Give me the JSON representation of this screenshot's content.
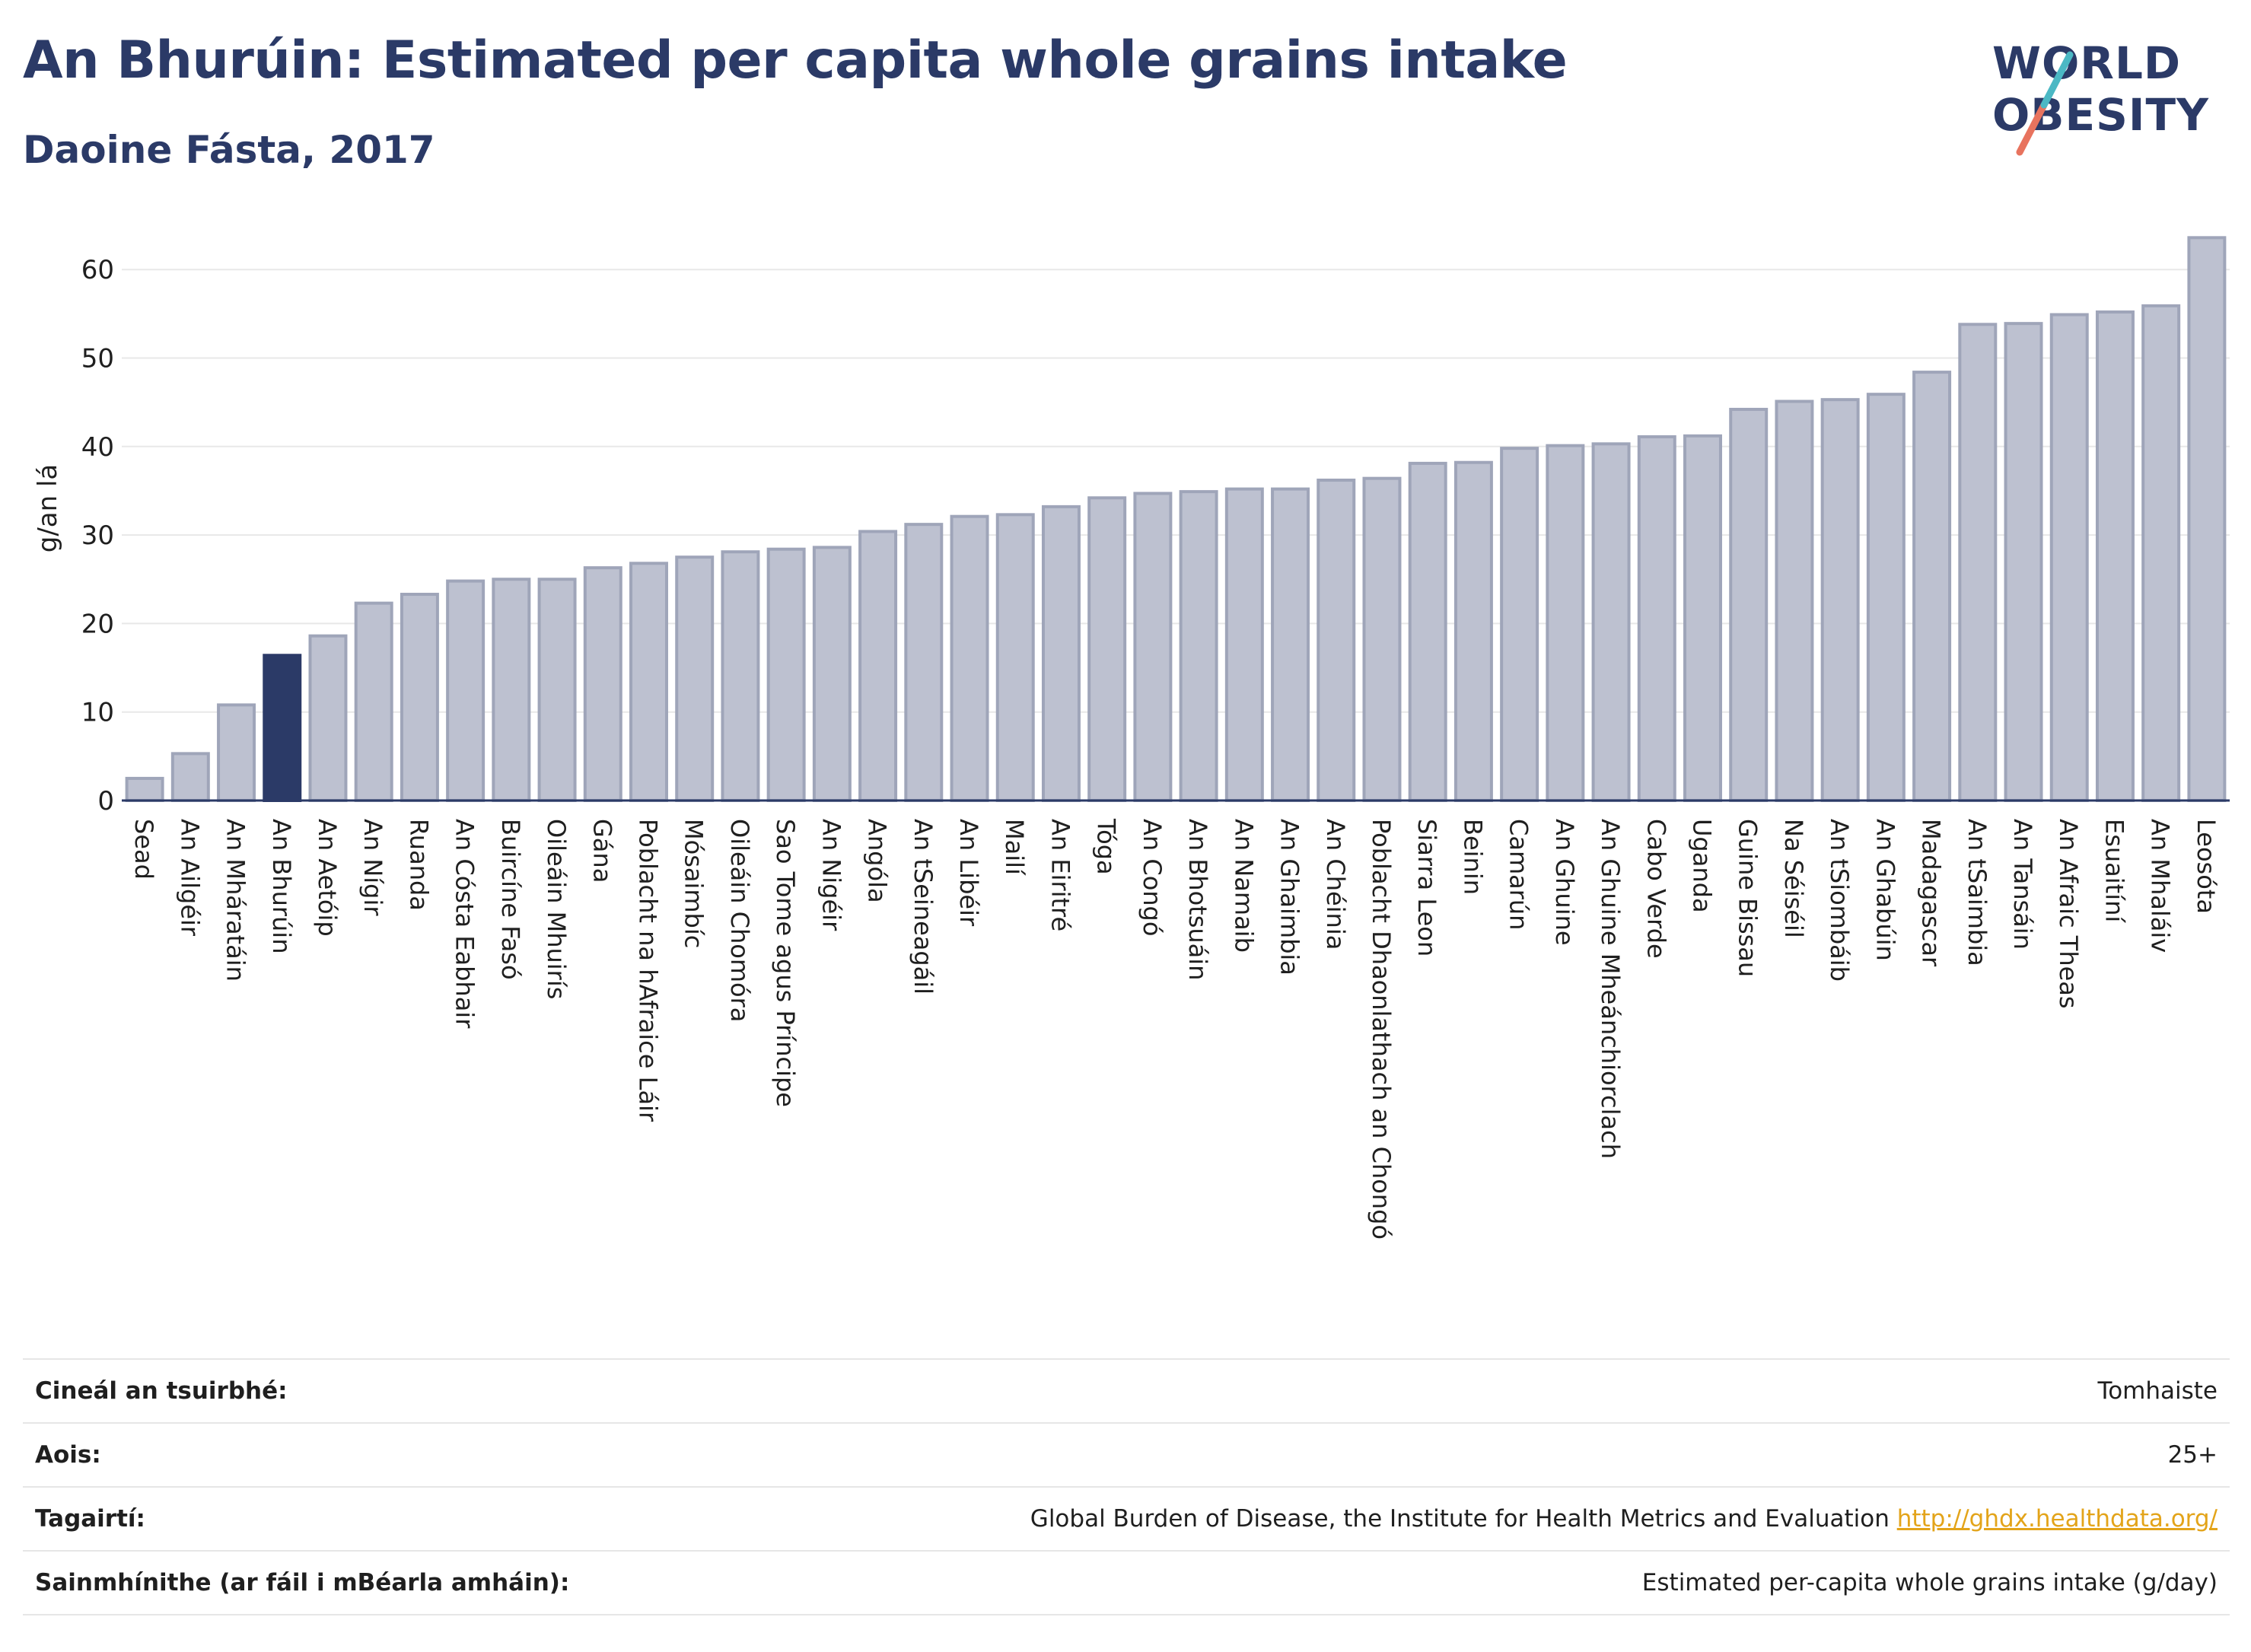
{
  "header": {
    "title": "An Bhurúin: Estimated per capita whole grains intake",
    "subtitle": "Daoine Fásta, 2017"
  },
  "logo": {
    "line1": "WORLD",
    "line2": "OBESITY"
  },
  "colors": {
    "highlight": "#2b3a67",
    "bar_fill": "#bdc1d0",
    "bar_stroke": "#9fa5b9",
    "accent_teal": "#4bb8c4",
    "accent_coral": "#e8735e",
    "link": "#e3a41a"
  },
  "chart_data": {
    "type": "bar",
    "title": "An Bhurúin: Estimated per capita whole grains intake",
    "subtitle": "Daoine Fásta, 2017",
    "ylabel": "g/an lá",
    "ylim": [
      0,
      65
    ],
    "yticks": [
      0,
      10,
      20,
      30,
      40,
      50,
      60
    ],
    "grid": true,
    "highlight": "An Bhurúin",
    "categories": [
      "Sead",
      "An Ailgéir",
      "An Mháratáin",
      "An Bhurúin",
      "An Aetóip",
      "An Nígir",
      "Ruanda",
      "An Cósta Eabhair",
      "Buircíne Fasó",
      "Oileáin Mhuirís",
      "Gána",
      "Poblacht na hAfraice Láir",
      "Mósaimbíc",
      "Oileáin Chomóra",
      "Sao Tome agus Príncipe",
      "An Nigéir",
      "Angóla",
      "An tSeineagáil",
      "An Libéir",
      "Mailí",
      "An Eiritré",
      "Tóga",
      "An Congó",
      "An Bhotsuáin",
      "An Namaib",
      "An Ghaimbia",
      "An Chéinia",
      "Poblacht Dhaonlathach an Chongó",
      "Siarra Leon",
      "Beinin",
      "Camarún",
      "An Ghuine",
      "An Ghuine Mheánchiorclach",
      "Cabo Verde",
      "Uganda",
      "Guine Bissau",
      "Na Séiséil",
      "An tSiombáib",
      "An Ghabúin",
      "Madagascar",
      "An tSaimbia",
      "An Tansáin",
      "An Afraic Theas",
      "Esuaitíní",
      "An Mhaláiv",
      "Leosóta"
    ],
    "values": [
      2.5,
      5.3,
      10.8,
      16.4,
      18.6,
      22.3,
      23.3,
      24.8,
      25.0,
      25.0,
      26.3,
      26.8,
      27.5,
      28.1,
      28.4,
      28.6,
      30.4,
      31.2,
      32.1,
      32.3,
      33.2,
      34.2,
      34.7,
      34.9,
      35.2,
      35.2,
      36.2,
      36.4,
      38.1,
      38.2,
      39.8,
      40.1,
      40.3,
      41.1,
      41.2,
      44.2,
      45.1,
      45.3,
      45.9,
      48.4,
      53.8,
      53.9,
      54.9,
      55.2,
      55.9,
      63.6
    ]
  },
  "info_table": [
    {
      "label": "Cineál an tsuirbhé:",
      "value": "Tomhaiste",
      "link": ""
    },
    {
      "label": "Aois:",
      "value": "25+",
      "link": ""
    },
    {
      "label": "Tagairtí:",
      "value": "Global Burden of Disease, the Institute for Health Metrics and Evaluation",
      "link": "http://ghdx.healthdata.org/"
    },
    {
      "label": "Sainmhínithe (ar fáil i mBéarla amháin):",
      "value": "Estimated per-capita whole grains intake (g/day)",
      "link": ""
    }
  ]
}
